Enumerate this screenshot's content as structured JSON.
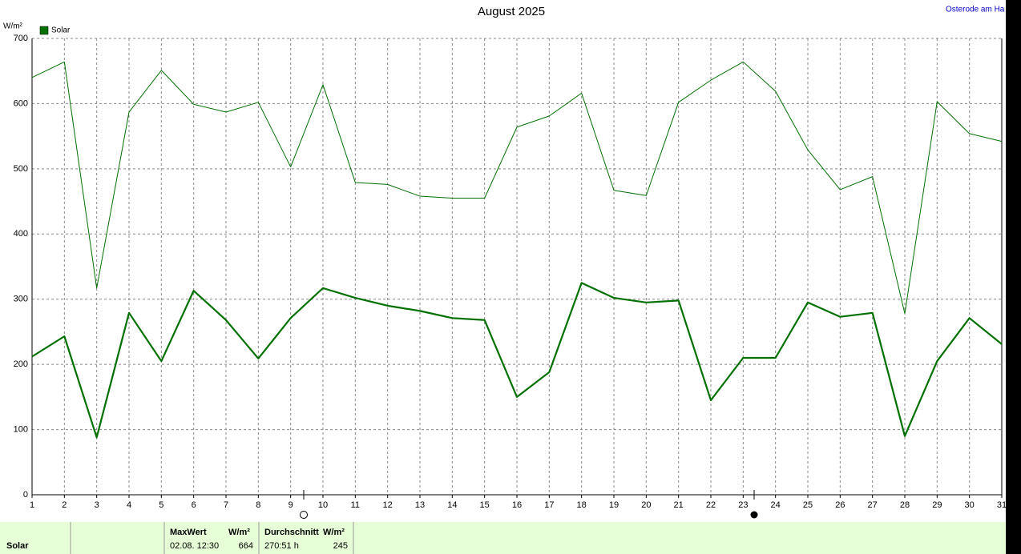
{
  "chart_data": {
    "type": "line",
    "title": "August 2025",
    "y_label": "W/m²",
    "station": "Osterode am Ha",
    "x": [
      1,
      2,
      3,
      4,
      5,
      6,
      7,
      8,
      9,
      10,
      11,
      12,
      13,
      14,
      15,
      16,
      17,
      18,
      19,
      20,
      21,
      22,
      23,
      24,
      25,
      26,
      27,
      28,
      29,
      30,
      31
    ],
    "xlim": [
      1,
      31
    ],
    "ylim": [
      0,
      700
    ],
    "yticks": [
      0,
      100,
      200,
      300,
      400,
      500,
      600,
      700
    ],
    "grid": true,
    "series": [
      {
        "name": "Solar",
        "color": "#007000",
        "width": 2.2,
        "values": [
          212,
          243,
          88,
          279,
          205,
          313,
          268,
          209,
          271,
          317,
          302,
          290,
          282,
          271,
          268,
          150,
          188,
          325,
          302,
          295,
          298,
          145,
          210,
          210,
          295,
          273,
          279,
          90,
          205,
          271,
          231
        ]
      },
      {
        "color": "#007000",
        "width": 1,
        "values": [
          640,
          664,
          317,
          587,
          651,
          599,
          587,
          602,
          503,
          629,
          479,
          476,
          458,
          455,
          455,
          564,
          581,
          616,
          467,
          459,
          602,
          636,
          664,
          619,
          529,
          468,
          488,
          278,
          603,
          554,
          542
        ]
      }
    ]
  },
  "footer": {
    "row_label": "Solar",
    "max_header": "MaxWert",
    "max_unit": "W/m²",
    "max_time": "02.08.  12:30",
    "max_value": "664",
    "avg_header": "Durchschnitt",
    "avg_unit": "W/m²",
    "avg_hours": "270:51 h",
    "avg_value": "245"
  }
}
